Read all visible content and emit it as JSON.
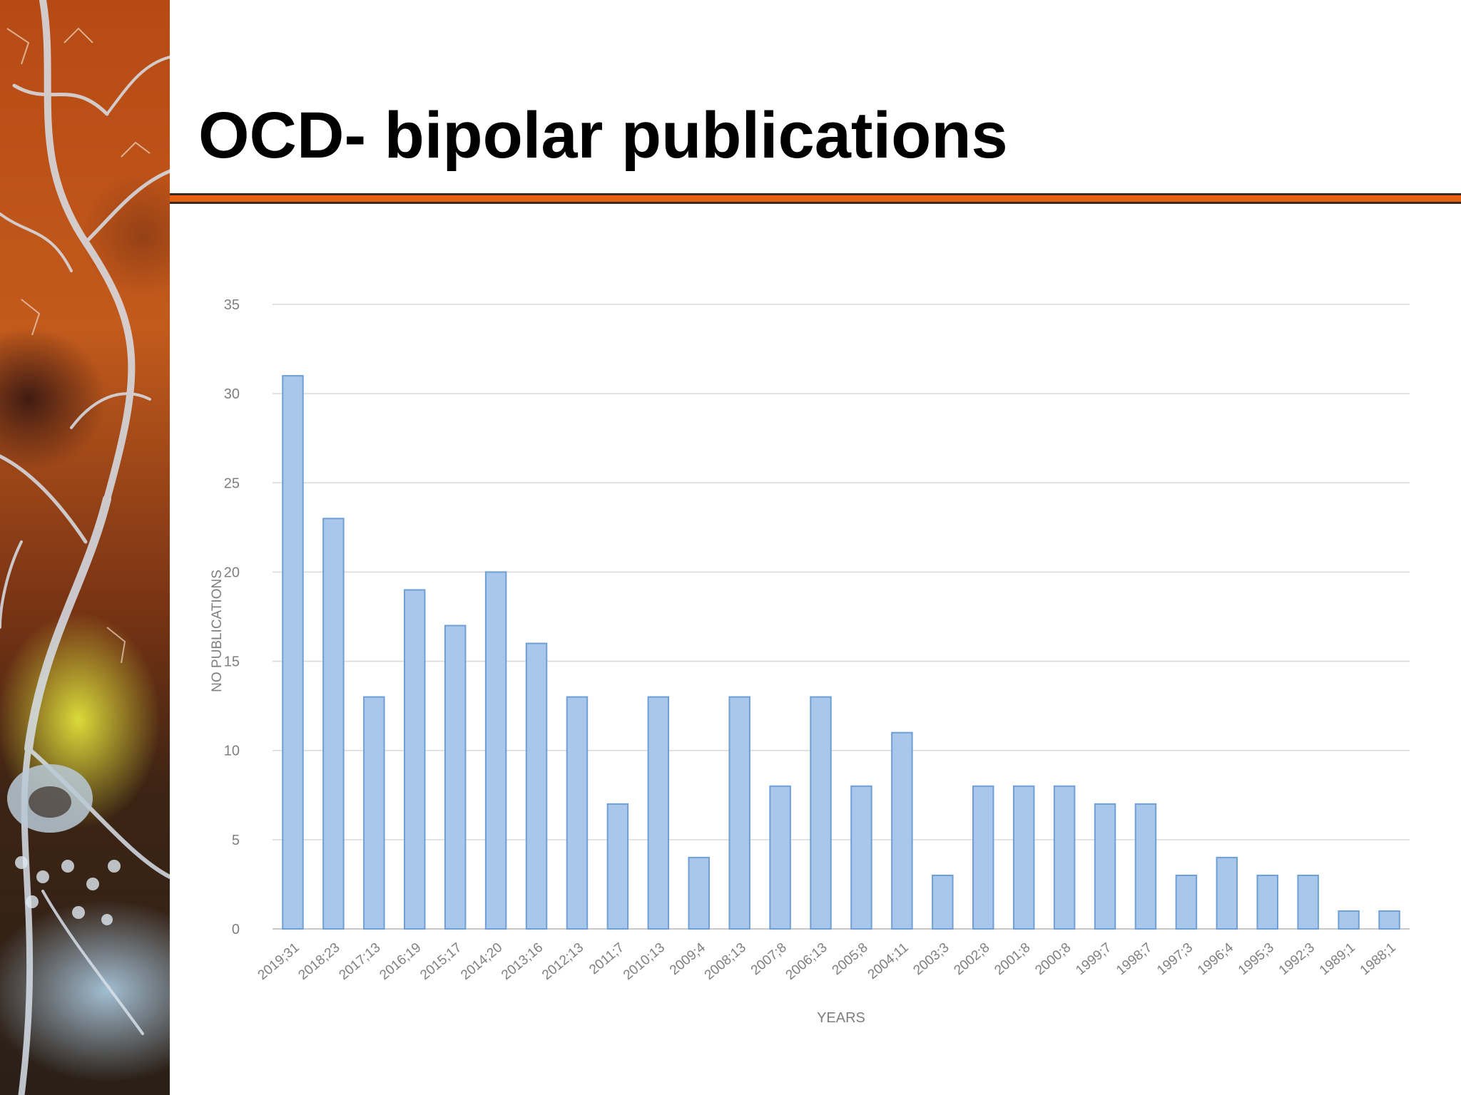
{
  "slide": {
    "title": "OCD- bipolar publications"
  },
  "colors": {
    "accent_rule": "#e8600f",
    "bar_fill": "#a9c7ea",
    "bar_stroke": "#6f9fd6",
    "grid": "#d9d9d9",
    "axis_text": "#7f7f7f"
  },
  "chart_data": {
    "type": "bar",
    "title": "",
    "xlabel": "YEARS",
    "ylabel": "NO PUBLICATIONS",
    "ylim": [
      0,
      35
    ],
    "yticks": [
      0,
      5,
      10,
      15,
      20,
      25,
      30,
      35
    ],
    "grid": true,
    "categories": [
      "2019;31",
      "2018;23",
      "2017;13",
      "2016;19",
      "2015;17",
      "2014;20",
      "2013;16",
      "2012;13",
      "2011;7",
      "2010;13",
      "2009;4",
      "2008;13",
      "2007;8",
      "2006;13",
      "2005;8",
      "2004;11",
      "2003;3",
      "2002;8",
      "2001;8",
      "2000;8",
      "1999;7",
      "1998;7",
      "1997;3",
      "1996;4",
      "1995;3",
      "1992;3",
      "1989;1",
      "1988;1"
    ],
    "values": [
      31,
      23,
      13,
      19,
      17,
      20,
      16,
      13,
      7,
      13,
      4,
      13,
      8,
      13,
      8,
      11,
      3,
      8,
      8,
      8,
      7,
      7,
      3,
      4,
      3,
      3,
      1,
      1
    ]
  }
}
